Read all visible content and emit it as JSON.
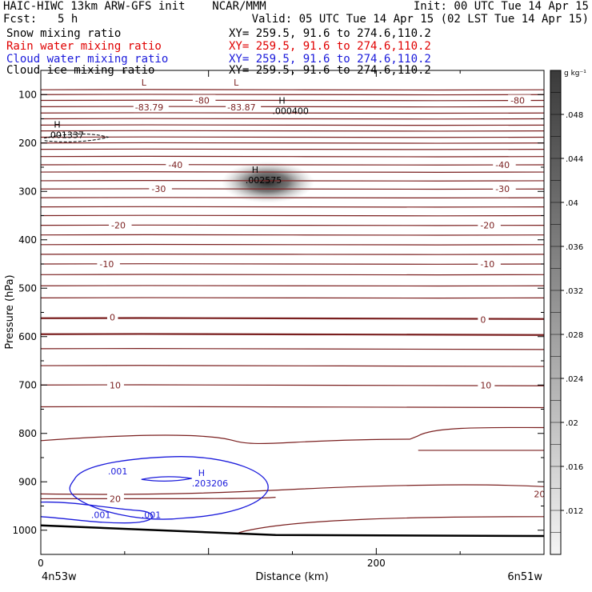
{
  "header": {
    "title": "HAIC-HIWC 13km ARW-GFS init    NCAR/MMM",
    "init": "Init: 00 UTC Tue 14 Apr 15",
    "fcst_label": "Fcst:",
    "fcst_value": "5 h",
    "valid": "Valid: 05 UTC Tue 14 Apr 15 (02 LST Tue 14 Apr 15)",
    "fields": [
      {
        "name": "Snow mixing ratio",
        "xy": "XY= 259.5, 91.6 to 274.6,110.2",
        "color": "#000000"
      },
      {
        "name": "Rain water mixing ratio",
        "xy": "XY= 259.5, 91.6 to 274.6,110.2",
        "color": "#e00000"
      },
      {
        "name": "Cloud water mixing ratio",
        "xy": "XY= 259.5, 91.6 to 274.6,110.2",
        "color": "#1a1adb"
      },
      {
        "name": "Cloud ice mixing ratio",
        "xy": "XY= 259.5, 91.6 to 274.6,110.2",
        "color": "#000000"
      }
    ]
  },
  "chart_data": {
    "type": "cross-section contour",
    "xlabel": "Distance (km)",
    "ylabel": "Pressure (hPa)",
    "xlim": [
      0,
      300
    ],
    "ylim": [
      1050,
      50
    ],
    "x_ticks": [
      0,
      200
    ],
    "y_ticks": [
      100,
      200,
      300,
      400,
      500,
      600,
      700,
      800,
      900,
      1000
    ],
    "x_endpoints": [
      "4n53w",
      "6n51w"
    ],
    "temperature_contours": {
      "color": "#7a1f1f",
      "labels": [
        {
          "text": "-80",
          "x": 92,
          "p": 112
        },
        {
          "text": "-80",
          "x": 280,
          "p": 112
        },
        {
          "text": "-40",
          "x": 76,
          "p": 245
        },
        {
          "text": "-40",
          "x": 271,
          "p": 245
        },
        {
          "text": "-30",
          "x": 66,
          "p": 295
        },
        {
          "text": "-30",
          "x": 271,
          "p": 295
        },
        {
          "text": "-20",
          "x": 42,
          "p": 370
        },
        {
          "text": "-20",
          "x": 262,
          "p": 370
        },
        {
          "text": "-10",
          "x": 35,
          "p": 450
        },
        {
          "text": "-10",
          "x": 262,
          "p": 450
        },
        {
          "text": "0",
          "x": 41,
          "p": 560
        },
        {
          "text": "0",
          "x": 262,
          "p": 565
        },
        {
          "text": "10",
          "x": 41,
          "p": 700
        },
        {
          "text": "10",
          "x": 262,
          "p": 700
        },
        {
          "text": "20",
          "x": 41,
          "p": 935
        },
        {
          "text": "20",
          "x": 294,
          "p": 925
        }
      ],
      "lows": [
        {
          "marker": "L",
          "value": "-83.79",
          "x": 60,
          "p": 95
        },
        {
          "marker": "L",
          "value": "-83.87",
          "x": 115,
          "p": 95
        }
      ]
    },
    "snow_max": {
      "marker": "H",
      "value": ".000400",
      "x": 138,
      "p": 125
    },
    "ice_max": {
      "marker": "H",
      "value": ".001337",
      "x": 4,
      "p": 175
    },
    "shading_max": {
      "marker": "H",
      "value": ".002575",
      "x": 122,
      "p": 268
    },
    "cloud_water": {
      "color": "#1a1adb",
      "max": {
        "marker": "H",
        "value": ".203206",
        "x": 90,
        "p": 895
      },
      "labels": [
        {
          "text": ".001",
          "x": 40,
          "p": 885
        },
        {
          "text": ".001",
          "x": 30,
          "p": 975
        },
        {
          "text": ".001",
          "x": 60,
          "p": 975
        }
      ]
    },
    "colorbar": {
      "unit": "g kg⁻¹",
      "ticks": [
        ".012",
        ".016",
        ".02",
        ".024",
        ".028",
        ".032",
        ".036",
        ".04",
        ".044",
        ".048"
      ],
      "min": 0.008,
      "max": 0.052
    }
  }
}
